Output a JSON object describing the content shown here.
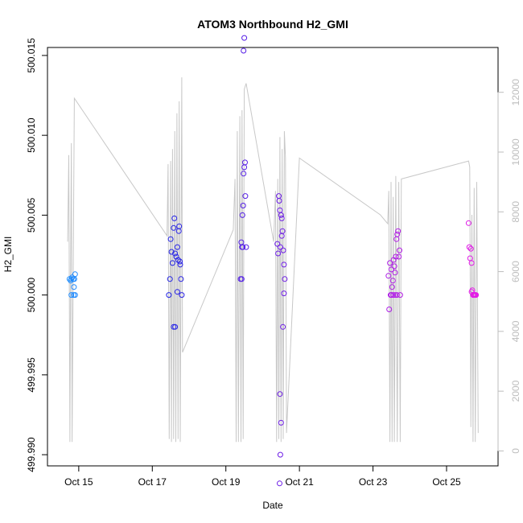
{
  "chart_data": {
    "type": "scatter",
    "title": "ATOM3 Northbound H2_GMI",
    "xlabel": "Date",
    "ylabel": "H2_GMI",
    "x_ticks": [
      "Oct 15",
      "Oct 17",
      "Oct 19",
      "Oct 21",
      "Oct 23",
      "Oct 25"
    ],
    "x_tick_days": [
      15,
      17,
      19,
      21,
      23,
      25
    ],
    "xlim_days": [
      14.15,
      26.4
    ],
    "y_ticks": [
      "499.990",
      "499.995",
      "500.000",
      "500.005",
      "500.010",
      "500.015"
    ],
    "y_tick_values": [
      499.99,
      499.995,
      500.0,
      500.005,
      500.01,
      500.015
    ],
    "ylim": [
      499.9893,
      500.0155
    ],
    "y2_ticks": [
      "0",
      "2000",
      "4000",
      "6000",
      "8000",
      "10000",
      "12000"
    ],
    "y2_tick_values": [
      0,
      2000,
      4000,
      6000,
      8000,
      10000,
      12000
    ],
    "y2lim": [
      -500,
      13500
    ],
    "colors": {
      "altitude_line": "#c8c8c8",
      "axis": "#000000",
      "y2_axis": "#bdbdbd",
      "point_gradient": [
        "#1e90ff",
        "#2323e6",
        "#6a1ee6",
        "#a51ee6",
        "#e619e6"
      ]
    },
    "series": [
      {
        "points": [
          [
            14.75,
            500.001
          ],
          [
            14.78,
            500.0009
          ],
          [
            14.8,
            500.001
          ],
          [
            14.82,
            500.0011
          ],
          [
            14.85,
            500.001
          ],
          [
            14.88,
            500.001
          ],
          [
            14.9,
            500.0013
          ],
          [
            14.8,
            500.0
          ],
          [
            14.86,
            500.0
          ],
          [
            14.9,
            500.0
          ],
          [
            14.87,
            500.0005
          ],
          [
            17.45,
            500.0
          ],
          [
            17.48,
            500.001
          ],
          [
            17.5,
            500.0035
          ],
          [
            17.52,
            500.0027
          ],
          [
            17.55,
            500.002
          ],
          [
            17.58,
            500.0042
          ],
          [
            17.6,
            500.0048
          ],
          [
            17.62,
            500.0026
          ],
          [
            17.65,
            500.0024
          ],
          [
            17.68,
            500.003
          ],
          [
            17.7,
            500.0022
          ],
          [
            17.72,
            500.004
          ],
          [
            17.75,
            500.0021
          ],
          [
            17.78,
            500.001
          ],
          [
            17.8,
            500.0
          ],
          [
            17.58,
            499.998
          ],
          [
            17.62,
            499.998
          ],
          [
            17.68,
            500.0002
          ],
          [
            17.73,
            500.0043
          ],
          [
            17.76,
            500.0019
          ],
          [
            19.4,
            500.001
          ],
          [
            19.42,
            500.0033
          ],
          [
            19.44,
            500.003
          ],
          [
            19.45,
            500.005
          ],
          [
            19.47,
            500.0056
          ],
          [
            19.48,
            500.0076
          ],
          [
            19.5,
            500.008
          ],
          [
            19.52,
            500.0083
          ],
          [
            19.53,
            500.0062
          ],
          [
            19.55,
            500.003
          ],
          [
            19.48,
            500.0153
          ],
          [
            19.5,
            500.0161
          ],
          [
            19.43,
            500.001
          ],
          [
            19.46,
            500.003
          ],
          [
            20.4,
            500.0032
          ],
          [
            20.42,
            500.0026
          ],
          [
            20.44,
            500.0062
          ],
          [
            20.45,
            500.0059
          ],
          [
            20.47,
            500.0053
          ],
          [
            20.48,
            500.003
          ],
          [
            20.5,
            500.005
          ],
          [
            20.52,
            500.0048
          ],
          [
            20.54,
            500.004
          ],
          [
            20.56,
            500.0028
          ],
          [
            20.58,
            500.0019
          ],
          [
            20.6,
            500.001
          ],
          [
            20.47,
            499.9938
          ],
          [
            20.5,
            499.992
          ],
          [
            20.48,
            499.99
          ],
          [
            20.46,
            499.9882
          ],
          [
            20.55,
            499.998
          ],
          [
            20.58,
            500.0001
          ],
          [
            20.52,
            500.0037
          ],
          [
            23.42,
            500.0012
          ],
          [
            23.44,
            499.9991
          ],
          [
            23.46,
            500.002
          ],
          [
            23.48,
            500.0
          ],
          [
            23.5,
            500.0016
          ],
          [
            23.52,
            500.0005
          ],
          [
            23.54,
            500.0009
          ],
          [
            23.56,
            500.0022
          ],
          [
            23.58,
            500.0018
          ],
          [
            23.6,
            500.0014
          ],
          [
            23.62,
            500.0024
          ],
          [
            23.64,
            500.0035
          ],
          [
            23.66,
            500.0038
          ],
          [
            23.68,
            500.004
          ],
          [
            23.7,
            500.0024
          ],
          [
            23.72,
            500.0028
          ],
          [
            23.74,
            500.0
          ],
          [
            23.5,
            500.0
          ],
          [
            23.55,
            500.0
          ],
          [
            23.6,
            500.0
          ],
          [
            23.65,
            500.0
          ],
          [
            25.6,
            500.0045
          ],
          [
            25.62,
            500.003
          ],
          [
            25.64,
            500.0023
          ],
          [
            25.66,
            500.0029
          ],
          [
            25.68,
            500.002
          ],
          [
            25.7,
            500.0003
          ],
          [
            25.72,
            500.0
          ],
          [
            25.74,
            500.0
          ],
          [
            25.76,
            500.0
          ],
          [
            25.78,
            500.0
          ],
          [
            25.8,
            500.0
          ],
          [
            25.68,
            500.0002
          ]
        ]
      },
      {
        "axis": "right",
        "points": [
          [
            14.7,
            7000
          ],
          [
            14.73,
            9900
          ],
          [
            14.76,
            300
          ],
          [
            14.78,
            6500
          ],
          [
            14.8,
            10300
          ],
          [
            14.82,
            300
          ],
          [
            14.85,
            6000
          ],
          [
            14.88,
            11800
          ],
          [
            17.4,
            7200
          ],
          [
            17.43,
            9600
          ],
          [
            17.46,
            400
          ],
          [
            17.5,
            9700
          ],
          [
            17.52,
            300
          ],
          [
            17.55,
            10100
          ],
          [
            17.58,
            400
          ],
          [
            17.61,
            10700
          ],
          [
            17.64,
            300
          ],
          [
            17.67,
            11300
          ],
          [
            17.7,
            400
          ],
          [
            17.73,
            11700
          ],
          [
            17.76,
            300
          ],
          [
            17.8,
            12500
          ],
          [
            17.82,
            3300
          ],
          [
            19.2,
            7400
          ],
          [
            19.25,
            9100
          ],
          [
            19.28,
            300
          ],
          [
            19.31,
            10700
          ],
          [
            19.34,
            300
          ],
          [
            19.38,
            11200
          ],
          [
            19.41,
            300
          ],
          [
            19.44,
            11400
          ],
          [
            19.47,
            400
          ],
          [
            19.5,
            12100
          ],
          [
            19.55,
            12300
          ],
          [
            20.3,
            7000
          ],
          [
            20.35,
            8700
          ],
          [
            20.38,
            300
          ],
          [
            20.41,
            9100
          ],
          [
            20.44,
            400
          ],
          [
            20.47,
            10500
          ],
          [
            20.5,
            300
          ],
          [
            20.53,
            10100
          ],
          [
            20.56,
            400
          ],
          [
            20.59,
            10700
          ],
          [
            20.62,
            9800
          ],
          [
            20.65,
            600
          ],
          [
            21.0,
            9800
          ],
          [
            23.2,
            7900
          ],
          [
            23.4,
            7600
          ],
          [
            23.43,
            8700
          ],
          [
            23.46,
            300
          ],
          [
            23.49,
            9000
          ],
          [
            23.52,
            300
          ],
          [
            23.55,
            8500
          ],
          [
            23.58,
            300
          ],
          [
            23.62,
            9200
          ],
          [
            23.66,
            300
          ],
          [
            23.7,
            9000
          ],
          [
            23.74,
            300
          ],
          [
            23.77,
            9100
          ],
          [
            25.6,
            9700
          ],
          [
            25.63,
            9500
          ],
          [
            25.66,
            800
          ],
          [
            25.69,
            7900
          ],
          [
            25.72,
            300
          ],
          [
            25.75,
            8800
          ],
          [
            25.78,
            300
          ],
          [
            25.82,
            9000
          ],
          [
            25.86,
            600
          ]
        ]
      }
    ]
  }
}
